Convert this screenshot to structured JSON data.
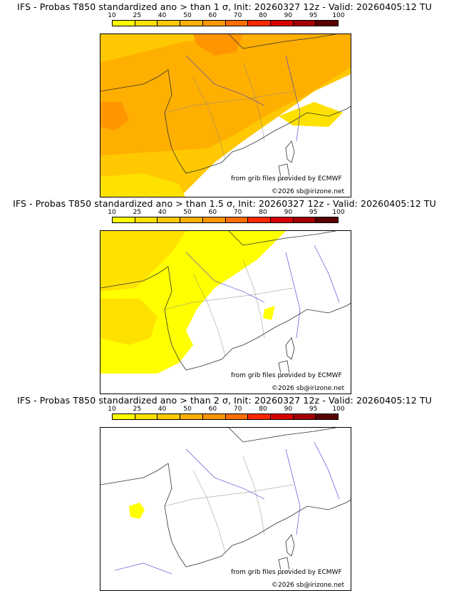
{
  "colorbar": {
    "labels": [
      "10",
      "25",
      "40",
      "50",
      "60",
      "70",
      "80",
      "90",
      "95",
      "100"
    ],
    "colors": [
      "#ffff00",
      "#ffe100",
      "#ffc800",
      "#ffaf00",
      "#ff9600",
      "#ff6e00",
      "#ff2800",
      "#d70000",
      "#a50000",
      "#5a0000"
    ]
  },
  "credits": {
    "source": "from grib files provided by ECMWF",
    "copyright": "©2026 sb@irizone.net"
  },
  "panels": [
    {
      "title": "IFS - Probas T850  standardized ano > than 1 σ, Init: 20260327 12z - Valid: 20260405:12 TU",
      "coverage": "high"
    },
    {
      "title": "IFS - Probas T850  standardized ano > than 1.5 σ, Init: 20260327 12z - Valid: 20260405:12 TU",
      "coverage": "medium"
    },
    {
      "title": "IFS - Probas T850  standardized ano > than 2 σ, Init: 20260327 12z - Valid: 20260405:12 TU",
      "coverage": "low"
    }
  ]
}
